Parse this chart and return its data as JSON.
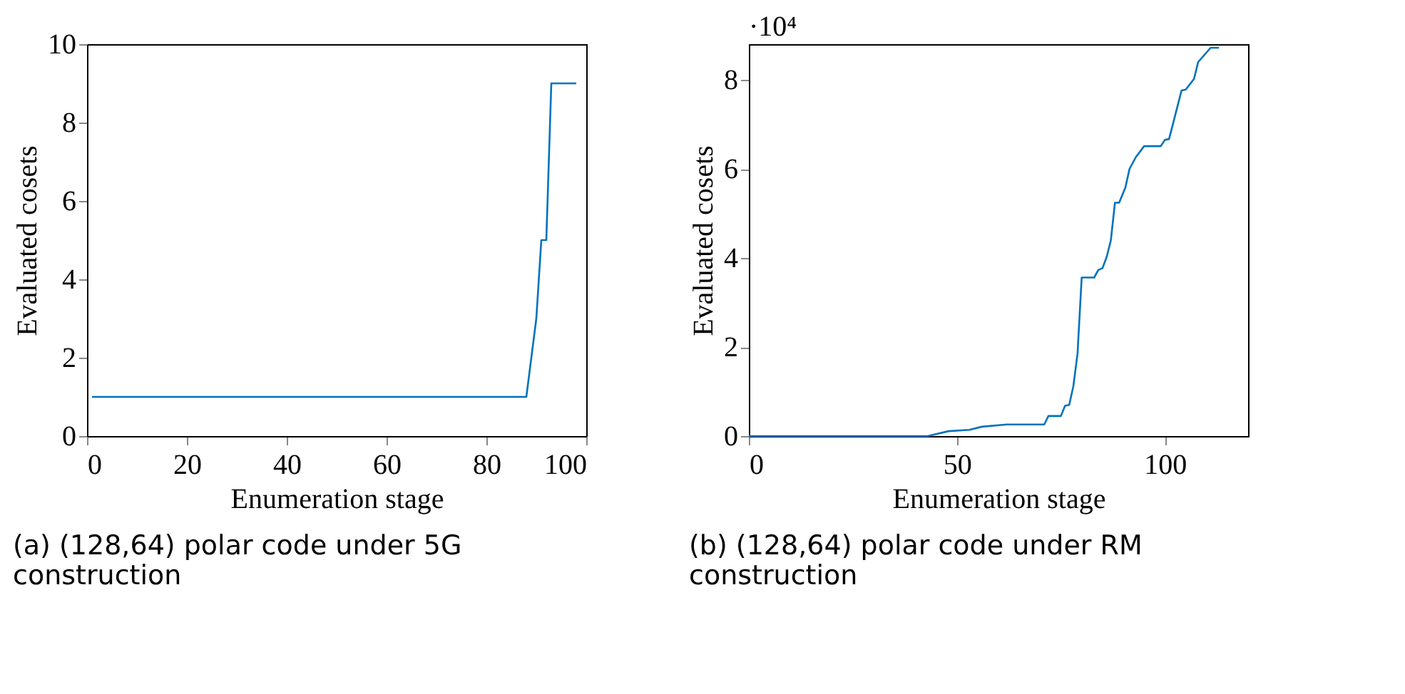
{
  "chart_data": [
    {
      "type": "line",
      "title": "(a) (128,64) polar code under 5G construction",
      "xlabel": "Enumeration stage",
      "ylabel": "Evaluated cosets",
      "xlim": [
        0,
        100
      ],
      "xticks": [
        0,
        20,
        40,
        60,
        80,
        100
      ],
      "ylim": [
        0,
        10
      ],
      "yticks": [
        0,
        2,
        4,
        6,
        8,
        10
      ],
      "grid": false,
      "series": [
        {
          "color": "#0072bd",
          "x": [
            1,
            88,
            90,
            91,
            92,
            93,
            98
          ],
          "values": [
            1,
            1,
            3,
            5,
            5,
            9,
            9
          ]
        }
      ]
    },
    {
      "type": "line",
      "title": "(b) (128,64) polar code under RM construction",
      "xlabel": "Enumeration stage",
      "ylabel": "Evaluated cosets",
      "annotations": [
        "·10⁴"
      ],
      "xlim": [
        0,
        120
      ],
      "xticks": [
        0,
        50,
        100
      ],
      "ylim": [
        0,
        8.8
      ],
      "yticks": [
        0,
        2,
        4,
        6,
        8
      ],
      "grid": false,
      "series": [
        {
          "color": "#0072bd",
          "x": [
            0,
            43,
            48,
            53,
            56,
            62,
            71,
            72,
            75,
            76,
            77,
            78,
            79,
            80,
            83,
            84,
            85,
            86,
            87,
            88,
            89,
            90.5,
            91.5,
            93,
            95,
            99,
            100,
            101,
            102,
            104,
            105,
            107,
            108,
            111,
            113
          ],
          "values": [
            0,
            0,
            0.11,
            0.14,
            0.21,
            0.26,
            0.26,
            0.45,
            0.45,
            0.68,
            0.7,
            1.12,
            1.85,
            3.56,
            3.56,
            3.73,
            3.77,
            4.02,
            4.39,
            5.24,
            5.24,
            5.58,
            6.0,
            6.26,
            6.51,
            6.51,
            6.65,
            6.67,
            7.03,
            7.76,
            7.78,
            8.02,
            8.4,
            8.72,
            8.72
          ]
        }
      ]
    }
  ]
}
